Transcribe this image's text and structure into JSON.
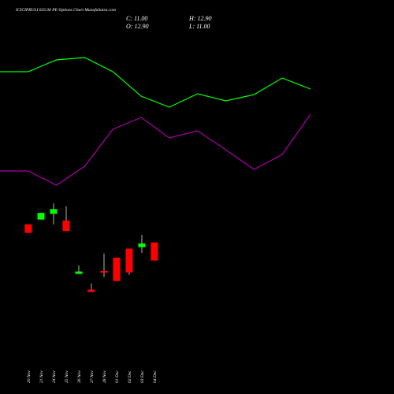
{
  "chart_data": [
    {
      "type": "candlestick",
      "title": "ICICIPRULI 635.00 PE Options Chart MunafaSutra.com",
      "ohlc_labels": [
        "C: 11.00",
        "H: 12.90",
        "O: 12.90",
        "L: 11.00"
      ],
      "categories": [
        "20 Nov",
        "21 Nov",
        "24 Nov",
        "25 Nov",
        "26 Nov",
        "27 Nov",
        "28 Nov",
        "01 Dec",
        "02 Dec",
        "03 Dec",
        "04 Dec"
      ],
      "open": [
        14.8,
        15.3,
        15.9,
        15.2,
        9.6,
        7.95,
        9.9,
        11.3,
        12.25,
        12.4,
        12.9
      ],
      "high": [
        14.8,
        16.0,
        17.0,
        16.7,
        10.5,
        8.6,
        11.75,
        11.3,
        12.25,
        13.7,
        12.9
      ],
      "low": [
        13.9,
        15.3,
        14.8,
        14.1,
        9.6,
        7.7,
        9.25,
        8.85,
        9.5,
        11.8,
        11.0
      ],
      "close": [
        13.9,
        16.0,
        16.4,
        14.1,
        9.85,
        7.7,
        9.8,
        8.85,
        9.75,
        12.8,
        11.0
      ],
      "up_color": "#00ff00",
      "down_color": "#ff0000",
      "ylim": [
        7,
        18
      ]
    },
    {
      "type": "line",
      "categories": [
        null,
        null,
        null,
        null,
        null,
        null,
        null,
        null,
        null,
        null,
        null,
        null
      ],
      "series": [
        {
          "color": "#00ff00",
          "values": [
            149,
            149,
            164,
            167,
            149,
            118,
            104,
            121,
            112,
            120,
            141,
            127
          ]
        },
        {
          "color": "#aa00aa",
          "values": [
            23,
            23,
            5,
            29,
            76,
            91,
            65,
            74,
            50,
            25,
            44,
            95
          ]
        }
      ],
      "ylim": [
        0,
        200
      ]
    }
  ]
}
